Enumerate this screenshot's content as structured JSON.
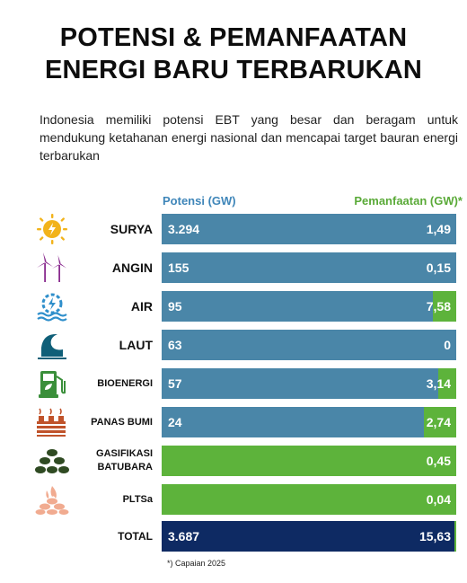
{
  "title": {
    "line1": "POTENSI & PEMANFAATAN",
    "line2": "ENERGI BARU TERBARUKAN"
  },
  "description": "Indonesia memiliki potensi EBT yang besar dan beragam untuk mendukung ketahanan energi nasional dan mencapai target bauran energi terbarukan",
  "headers": {
    "potensi": "Potensi (GW)",
    "pemanfaatan": "Pemanfaatan (GW)*"
  },
  "colors": {
    "potensi_bar": "#4a86a8",
    "pemanfaatan_bar": "#5db33b",
    "total_bar": "#0e2a63"
  },
  "chart_data": {
    "type": "bar",
    "categories": [
      "SURYA",
      "ANGIN",
      "AIR",
      "LAUT",
      "BIOENERGI",
      "PANAS BUMI",
      "GASIFIKASI BATUBARA",
      "PLTSa"
    ],
    "series": [
      {
        "name": "Potensi (GW)",
        "values": [
          3294,
          155,
          95,
          63,
          57,
          24,
          null,
          null
        ]
      },
      {
        "name": "Pemanfaatan (GW)*",
        "values": [
          1.49,
          0.15,
          7.58,
          0,
          3.14,
          2.74,
          0.45,
          0.04
        ]
      }
    ],
    "total": {
      "label": "TOTAL",
      "potensi": 3687,
      "pemanfaatan": 15.63
    }
  },
  "rows": [
    {
      "label": "SURYA",
      "potensi": "3.294",
      "pemanfaatan": "1,49",
      "icon": "sun-icon",
      "green_frac": 0.0,
      "full_green": false
    },
    {
      "label": "ANGIN",
      "potensi": "155",
      "pemanfaatan": "0,15",
      "icon": "wind-turbine-icon",
      "green_frac": 0.0,
      "full_green": false
    },
    {
      "label": "AIR",
      "potensi": "95",
      "pemanfaatan": "7,58",
      "icon": "water-gear-icon",
      "green_frac": 0.08,
      "full_green": false
    },
    {
      "label": "LAUT",
      "potensi": "63",
      "pemanfaatan": "0",
      "icon": "ocean-wave-icon",
      "green_frac": 0.0,
      "full_green": false
    },
    {
      "label": "BIOENERGI",
      "potensi": "57",
      "pemanfaatan": "3,14",
      "icon": "biofuel-pump-icon",
      "green_frac": 0.06,
      "full_green": false
    },
    {
      "label": "PANAS BUMI",
      "potensi": "24",
      "pemanfaatan": "2,74",
      "icon": "geothermal-icon",
      "green_frac": 0.11,
      "full_green": false
    },
    {
      "label": "GASIFIKASI BATUBARA",
      "label_line1": "GASIFIKASI",
      "label_line2": "BATUBARA",
      "potensi": "",
      "pemanfaatan": "0,45",
      "icon": "coal-pile-icon",
      "green_frac": 1.0,
      "full_green": true
    },
    {
      "label": "PLTSa",
      "potensi": "",
      "pemanfaatan": "0,04",
      "icon": "waste-fire-icon",
      "green_frac": 1.0,
      "full_green": true
    }
  ],
  "total": {
    "label": "TOTAL",
    "potensi": "3.687",
    "pemanfaatan": "15,63"
  },
  "footnote": "*) Capaian 2025"
}
